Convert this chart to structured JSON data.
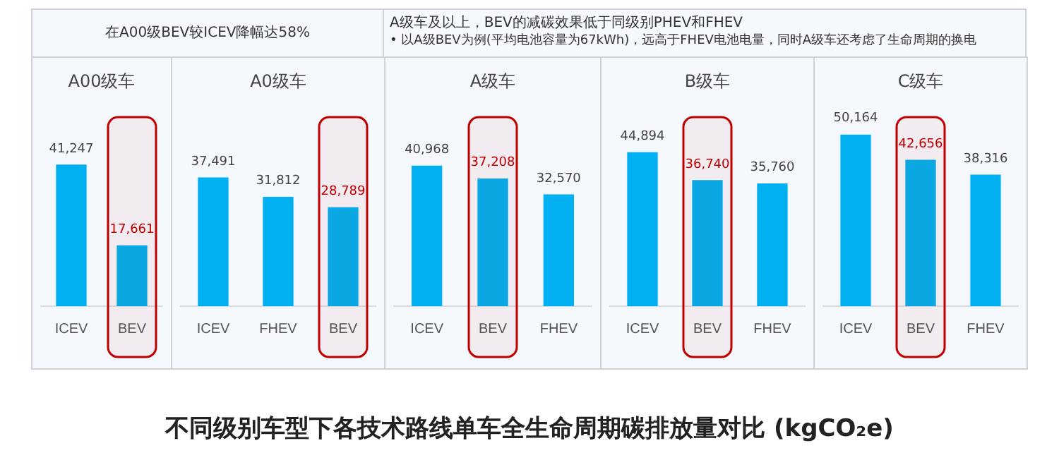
{
  "chart_data": [
    {
      "type": "bar",
      "title": "A00级车",
      "categories": [
        "ICEV",
        "BEV"
      ],
      "values": [
        41247,
        17661
      ],
      "value_labels": [
        "41,247",
        "17,661"
      ],
      "color": "#00b0f0",
      "bands": [
        {
          "axis": "x",
          "from": "BEV",
          "to": "BEV",
          "color": "#c00000"
        }
      ],
      "annotations": [
        "在A00级BEV较ICEV降幅达58%",
        "不同级别车型下各技术路线单车全生命周期碳排放量对比 (kgCO₂e)"
      ]
    },
    {
      "type": "bar",
      "title": "A0级车",
      "categories": [
        "ICEV",
        "FHEV",
        "BEV"
      ],
      "values": [
        37491,
        31812,
        28789
      ],
      "value_labels": [
        "37,491",
        "31,812",
        "28,789"
      ],
      "color": "#00b0f0",
      "bands": [
        {
          "axis": "x",
          "from": "BEV",
          "to": "BEV",
          "color": "#c00000"
        }
      ]
    },
    {
      "type": "bar",
      "title": "A级车",
      "categories": [
        "ICEV",
        "BEV",
        "FHEV"
      ],
      "values": [
        40968,
        37208,
        32570
      ],
      "value_labels": [
        "40,968",
        "37,208",
        "32,570"
      ],
      "color": "#00b0f0",
      "bands": [
        {
          "axis": "x",
          "from": "BEV",
          "to": "BEV",
          "color": "#c00000"
        }
      ],
      "annotations": [
        "A级车及以上，BEV的减碳效果低于同级别PHEV和FHEV",
        "•  以A级BEV为例(平均电池容量为67kWh)，远高于FHEV电池电量，同时A级车还考虑了生命周期的换电"
      ]
    },
    {
      "type": "bar",
      "title": "B级车",
      "categories": [
        "ICEV",
        "BEV",
        "FHEV"
      ],
      "values": [
        44894,
        36740,
        35760
      ],
      "value_labels": [
        "44,894",
        "36,740",
        "35,760"
      ],
      "color": "#00b0f0",
      "bands": [
        {
          "axis": "x",
          "from": "BEV",
          "to": "BEV",
          "color": "#c00000"
        }
      ]
    },
    {
      "type": "bar",
      "title": "C级车",
      "categories": [
        "ICEV",
        "BEV",
        "FHEV"
      ],
      "values": [
        50164,
        42656,
        38316
      ],
      "value_labels": [
        "50,164",
        "42,656",
        "38,316"
      ],
      "color": "#00b0f0",
      "bands": [
        {
          "axis": "x",
          "from": "BEV",
          "to": "BEV",
          "color": "#c00000"
        }
      ]
    }
  ]
}
